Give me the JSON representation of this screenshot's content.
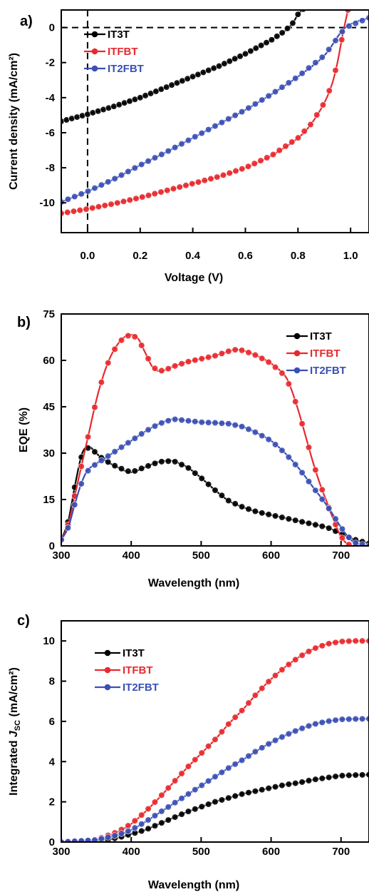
{
  "chart_data": [
    {
      "type": "line",
      "panel": "a)",
      "xlabel": "Voltage (V)",
      "ylabel": "Current density (mA/cm²)",
      "xlim": [
        -0.1,
        1.07
      ],
      "ylim": [
        -11.7,
        1.0
      ],
      "xticks": [
        0.0,
        0.2,
        0.4,
        0.6,
        0.8,
        1.0
      ],
      "xtick_labels": [
        "0.0",
        "0.2",
        "0.4",
        "0.6",
        "0.8",
        "1.0"
      ],
      "yticks": [
        0,
        -2,
        -4,
        -6,
        -8,
        -10
      ],
      "ytick_labels": [
        "0",
        "-2",
        "-4",
        "-6",
        "-8",
        "-10"
      ],
      "grid": false,
      "legend_position": "top-left",
      "reference_lines": [
        {
          "axis": "y",
          "value": 0,
          "style": "dashed"
        },
        {
          "axis": "x",
          "value": 0,
          "style": "dashed"
        }
      ],
      "series": [
        {
          "name": "IT3T",
          "color": "#000000",
          "x": [
            -0.1,
            0.0,
            0.1,
            0.2,
            0.3,
            0.4,
            0.5,
            0.6,
            0.7,
            0.75,
            0.78,
            0.8,
            0.82
          ],
          "y": [
            -5.35,
            -4.95,
            -4.5,
            -4.0,
            -3.4,
            -2.8,
            -2.2,
            -1.5,
            -0.7,
            -0.2,
            0.25,
            0.75,
            1.05
          ]
        },
        {
          "name": "ITFBT",
          "color": "#e8292e",
          "x": [
            -0.1,
            0.0,
            0.1,
            0.2,
            0.3,
            0.4,
            0.5,
            0.6,
            0.7,
            0.8,
            0.85,
            0.9,
            0.93,
            0.95,
            0.97,
            0.99
          ],
          "y": [
            -10.6,
            -10.35,
            -10.05,
            -9.7,
            -9.3,
            -8.9,
            -8.5,
            -8.0,
            -7.3,
            -6.3,
            -5.5,
            -4.3,
            -3.2,
            -2.0,
            -0.4,
            1.0
          ]
        },
        {
          "name": "IT2FBT",
          "color": "#3b4fb5",
          "x": [
            -0.1,
            0.0,
            0.1,
            0.2,
            0.3,
            0.4,
            0.5,
            0.6,
            0.7,
            0.8,
            0.9,
            0.98,
            1.07
          ],
          "y": [
            -9.95,
            -9.35,
            -8.65,
            -7.85,
            -7.1,
            -6.3,
            -5.5,
            -4.7,
            -3.8,
            -2.8,
            -1.6,
            0.0,
            0.55
          ]
        }
      ]
    },
    {
      "type": "line",
      "panel": "b)",
      "xlabel": "Wavelength (nm)",
      "ylabel": "EQE (%)",
      "xlim": [
        300,
        740
      ],
      "ylim": [
        0,
        75
      ],
      "xticks": [
        300,
        400,
        500,
        600,
        700
      ],
      "xtick_labels": [
        "300",
        "400",
        "500",
        "600",
        "700"
      ],
      "yticks": [
        0,
        15,
        30,
        45,
        60,
        75
      ],
      "ytick_labels": [
        "0",
        "15",
        "30",
        "45",
        "60",
        "75"
      ],
      "grid": false,
      "legend_position": "top-right",
      "series": [
        {
          "name": "IT3T",
          "color": "#000000",
          "x": [
            300,
            310,
            320,
            330,
            340,
            350,
            360,
            380,
            400,
            420,
            440,
            460,
            470,
            480,
            500,
            520,
            540,
            560,
            580,
            600,
            620,
            640,
            660,
            680,
            700,
            720,
            740
          ],
          "y": [
            2,
            8,
            20,
            30,
            32,
            30,
            28,
            25.5,
            23.8,
            25.5,
            27.2,
            27.5,
            26.5,
            25.5,
            22,
            18,
            14.5,
            12.5,
            11,
            10,
            9,
            8,
            7,
            6,
            4,
            2,
            0.8
          ]
        },
        {
          "name": "ITFBT",
          "color": "#e8292e",
          "x": [
            300,
            310,
            320,
            330,
            340,
            350,
            360,
            370,
            380,
            390,
            400,
            410,
            420,
            430,
            440,
            450,
            460,
            480,
            500,
            520,
            540,
            550,
            560,
            580,
            600,
            620,
            630,
            640,
            650,
            660,
            670,
            680,
            690,
            700,
            710,
            720,
            740
          ],
          "y": [
            2,
            7,
            17,
            27,
            37,
            47,
            55,
            61,
            65,
            67.5,
            68.3,
            67,
            62.5,
            58,
            56.5,
            57,
            58,
            59.5,
            60.5,
            61.5,
            63,
            63.5,
            63.2,
            61.5,
            59,
            55,
            50,
            43,
            35,
            27,
            20,
            14,
            8,
            3,
            0.5,
            0,
            0
          ]
        },
        {
          "name": "IT2FBT",
          "color": "#3b4fb5",
          "x": [
            300,
            310,
            320,
            330,
            340,
            360,
            380,
            400,
            420,
            440,
            460,
            480,
            500,
            520,
            540,
            560,
            580,
            600,
            620,
            640,
            660,
            680,
            700,
            710,
            720,
            740
          ],
          "y": [
            2,
            6,
            14,
            21,
            25,
            28,
            31,
            34,
            37,
            39.5,
            41,
            40.5,
            40,
            39.8,
            39.5,
            38.5,
            36.5,
            34,
            30,
            25,
            19,
            13,
            6,
            3,
            1,
            0
          ]
        }
      ]
    },
    {
      "type": "line",
      "panel": "c)",
      "xlabel": "Wavelength (nm)",
      "ylabel_prefix": "Integrated ",
      "ylabel_italic": "J",
      "ylabel_subscript": "SC",
      "ylabel_suffix": " (mA/cm²)",
      "xlim": [
        300,
        740
      ],
      "ylim": [
        0,
        11
      ],
      "xticks": [
        300,
        400,
        500,
        600,
        700
      ],
      "xtick_labels": [
        "300",
        "400",
        "500",
        "600",
        "700"
      ],
      "yticks": [
        0,
        2,
        4,
        6,
        8,
        10
      ],
      "ytick_labels": [
        "0",
        "2",
        "4",
        "6",
        "8",
        "10"
      ],
      "grid": false,
      "legend_position": "top-left",
      "series": [
        {
          "name": "IT3T",
          "color": "#000000",
          "x": [
            300,
            350,
            380,
            400,
            420,
            440,
            460,
            480,
            500,
            520,
            540,
            560,
            580,
            600,
            620,
            640,
            660,
            680,
            700,
            720,
            740
          ],
          "y": [
            0,
            0.05,
            0.2,
            0.4,
            0.6,
            0.9,
            1.2,
            1.5,
            1.75,
            2.0,
            2.2,
            2.4,
            2.55,
            2.7,
            2.85,
            2.95,
            3.1,
            3.2,
            3.3,
            3.33,
            3.35
          ]
        },
        {
          "name": "ITFBT",
          "color": "#e8292e",
          "x": [
            300,
            350,
            380,
            400,
            420,
            440,
            460,
            480,
            500,
            520,
            540,
            560,
            580,
            600,
            620,
            640,
            660,
            680,
            700,
            720,
            740
          ],
          "y": [
            0,
            0.12,
            0.5,
            0.9,
            1.5,
            2.2,
            2.95,
            3.7,
            4.4,
            5.1,
            5.9,
            6.6,
            7.4,
            8.1,
            8.7,
            9.2,
            9.6,
            9.85,
            9.97,
            10.0,
            10.0
          ]
        },
        {
          "name": "IT2FBT",
          "color": "#3b4fb5",
          "x": [
            300,
            350,
            380,
            400,
            420,
            440,
            460,
            480,
            500,
            520,
            540,
            560,
            580,
            600,
            620,
            640,
            660,
            680,
            700,
            720,
            740
          ],
          "y": [
            0,
            0.1,
            0.35,
            0.6,
            1.0,
            1.45,
            1.9,
            2.35,
            2.8,
            3.25,
            3.7,
            4.1,
            4.55,
            4.95,
            5.3,
            5.6,
            5.85,
            6.0,
            6.1,
            6.12,
            6.13
          ]
        }
      ]
    }
  ]
}
